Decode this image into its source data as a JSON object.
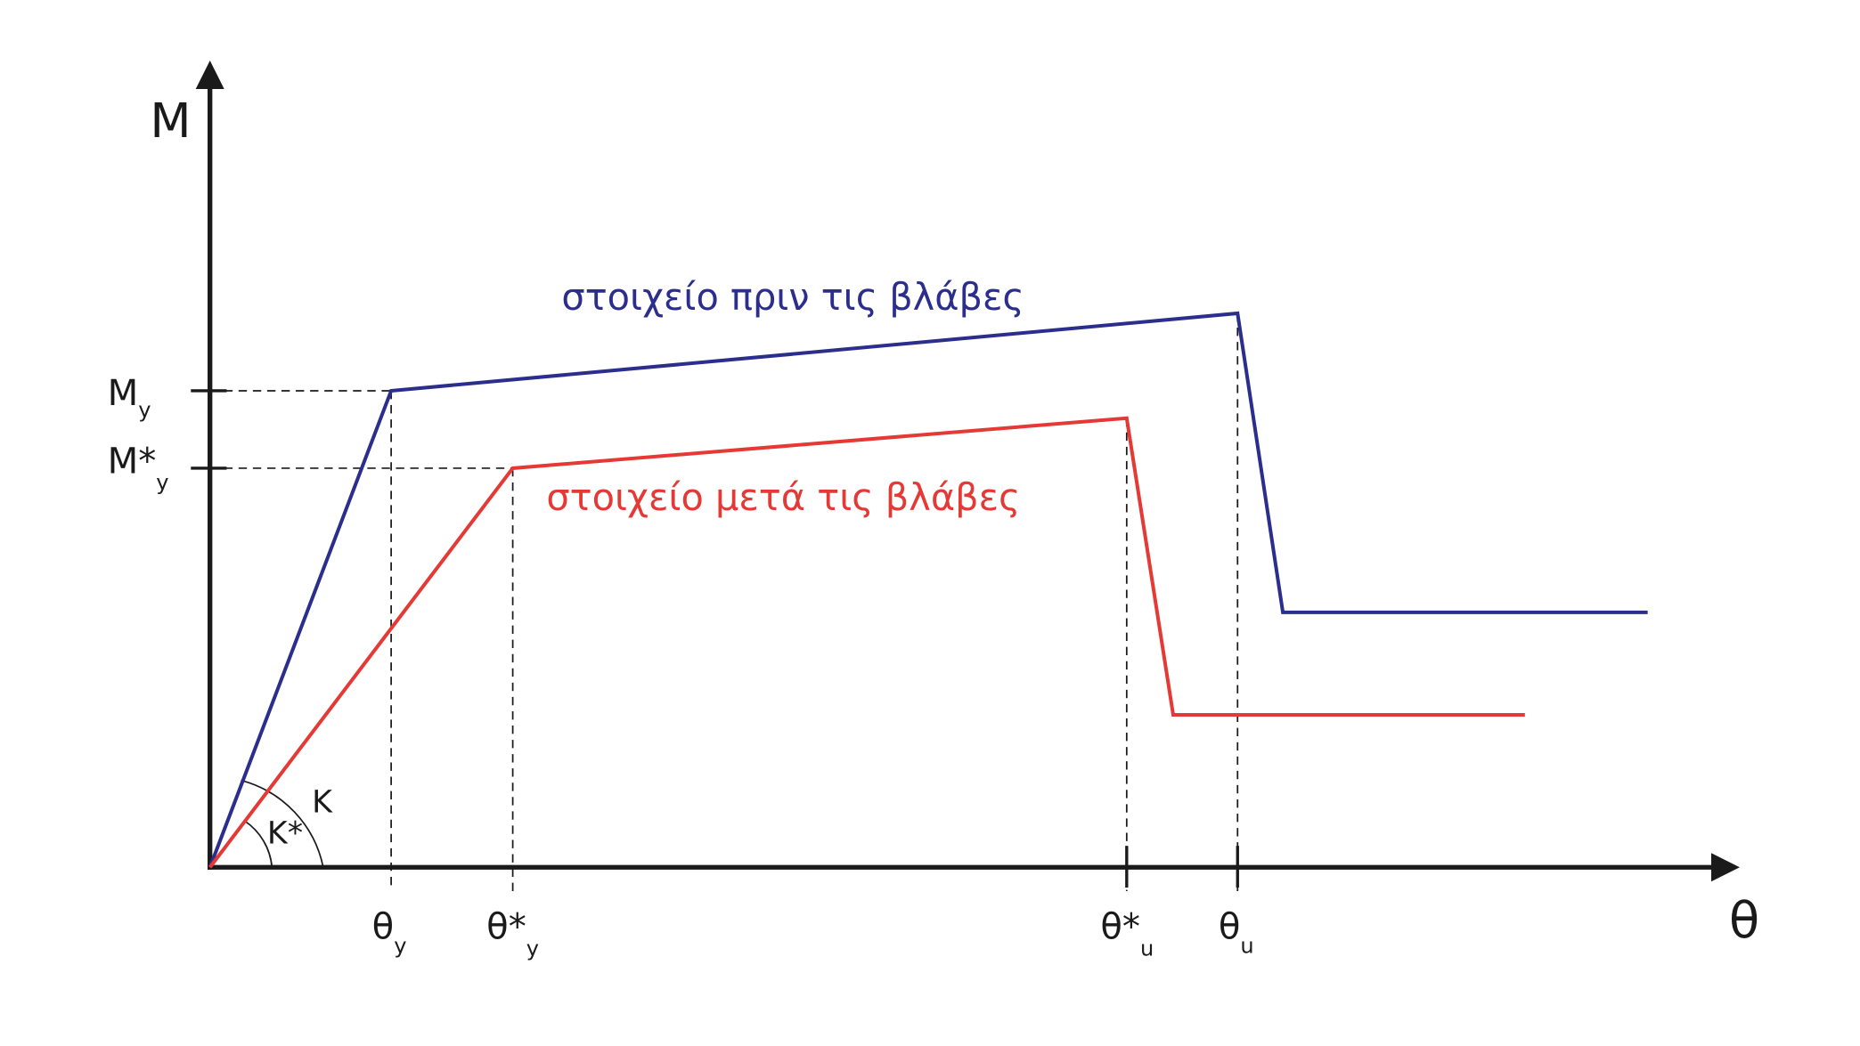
{
  "axes": {
    "y_label": "M",
    "x_label": "θ"
  },
  "y_ticks": [
    {
      "main": "M",
      "sub": "y"
    },
    {
      "main": "M*",
      "sub": "y"
    }
  ],
  "x_ticks": [
    {
      "main": "θ",
      "sub": "y"
    },
    {
      "main": "θ*",
      "sub": "y"
    },
    {
      "main": "θ*",
      "sub": "u"
    },
    {
      "main": "θ",
      "sub": "u"
    }
  ],
  "curves": [
    {
      "label": "στοιχείο πριν τις βλάβες"
    },
    {
      "label": "στοιχείο μετά τις βλάβες"
    }
  ],
  "stiffness_labels": [
    "K",
    "K*"
  ]
}
